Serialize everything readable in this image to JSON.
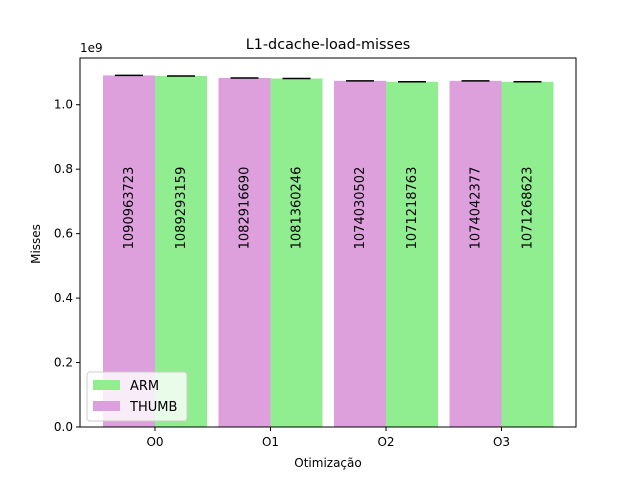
{
  "chart_data": {
    "type": "bar",
    "title": "L1-dcache-load-misses",
    "xlabel": "Otimização",
    "ylabel": "Misses",
    "y_scale_label": "1e9",
    "categories": [
      "O0",
      "O1",
      "O2",
      "O3"
    ],
    "ylim": [
      0,
      1145000000.0
    ],
    "yticks": [
      0,
      200000000.0,
      400000000.0,
      600000000.0,
      800000000.0,
      1000000000.0
    ],
    "ytick_labels": [
      "0.0",
      "0.2",
      "0.4",
      "0.6",
      "0.8",
      "1.0"
    ],
    "legend_position": "lower-left",
    "grid": false,
    "series": [
      {
        "name": "THUMB",
        "color": "#dda0dd",
        "values": [
          1090963723,
          1082916690,
          1074030502,
          1074042377
        ],
        "labels": [
          "1090963723",
          "1082916690",
          "1074030502",
          "1074042377"
        ]
      },
      {
        "name": "ARM",
        "color": "#90ee90",
        "values": [
          1089293159,
          1081360246,
          1071218763,
          1071268623
        ],
        "labels": [
          "1089293159",
          "1081360246",
          "1071218763",
          "1071268623"
        ]
      }
    ],
    "legend_order": [
      "ARM",
      "THUMB"
    ]
  }
}
